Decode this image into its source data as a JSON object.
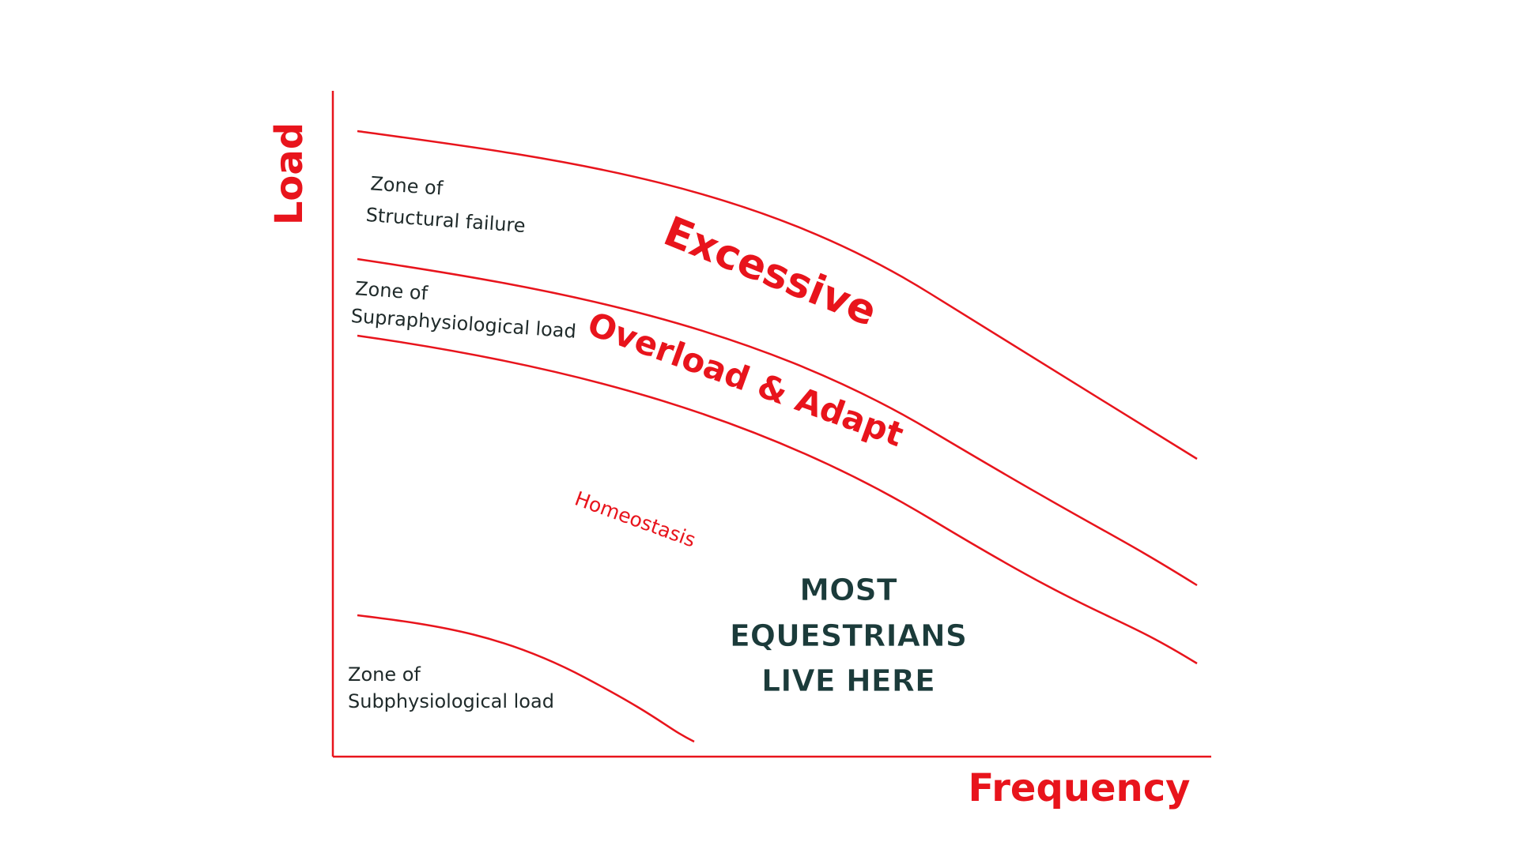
{
  "axes": {
    "y_label": "Load",
    "x_label": "Frequency"
  },
  "zones": {
    "structural": {
      "line1": "Zone of",
      "line2": "Structural failure"
    },
    "supra": {
      "line1": "Zone of",
      "line2": "Supraphysiological load"
    },
    "sub": {
      "line1": "Zone of",
      "line2": "Subphysiological load"
    }
  },
  "bands": {
    "excessive": "Excessive",
    "overload": "Overload & Adapt",
    "homeostasis": "Homeostasis"
  },
  "callout": {
    "lines": [
      "MOST",
      "EQUESTRIANS",
      "LIVE HERE"
    ]
  }
}
